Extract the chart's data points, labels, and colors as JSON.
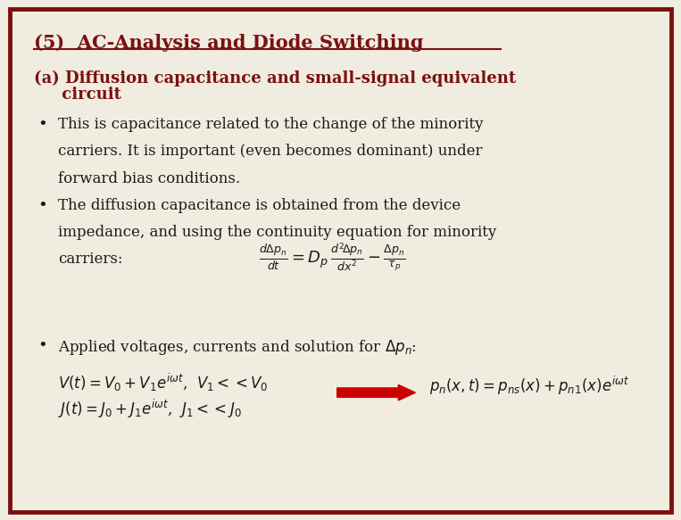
{
  "background_color": "#f0ece0",
  "border_color": "#7B1010",
  "title": "(5)  AC-Analysis and Diode Switching",
  "title_color": "#7B1010",
  "subtitle_line1": "(a) Diffusion capacitance and small-signal equivalent",
  "subtitle_line2": "     circuit",
  "subtitle_color": "#7B1010",
  "bullet_color": "#1a1a1a",
  "text_color": "#1a1a1a",
  "arrow_color": "#CC0000",
  "figsize": [
    7.63,
    5.83
  ],
  "dpi": 100,
  "title_fontsize": 15,
  "subtitle_fontsize": 13,
  "body_fontsize": 12,
  "eq_fontsize": 13
}
